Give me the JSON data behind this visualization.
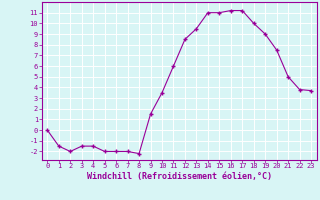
{
  "x": [
    0,
    1,
    2,
    3,
    4,
    5,
    6,
    7,
    8,
    9,
    10,
    11,
    12,
    13,
    14,
    15,
    16,
    17,
    18,
    19,
    20,
    21,
    22,
    23
  ],
  "y": [
    0.0,
    -1.5,
    -2.0,
    -1.5,
    -1.5,
    -2.0,
    -2.0,
    -2.0,
    -2.2,
    1.5,
    3.5,
    6.0,
    8.5,
    9.5,
    11.0,
    11.0,
    11.2,
    11.2,
    10.0,
    9.0,
    7.5,
    5.0,
    3.8,
    3.7
  ],
  "line_color": "#990099",
  "marker": "+",
  "marker_size": 3,
  "marker_linewidth": 1.0,
  "line_width": 0.8,
  "xlabel": "Windchill (Refroidissement éolien,°C)",
  "xlabel_fontsize": 6,
  "background_color": "#d8f5f5",
  "grid_color": "#ffffff",
  "ylim": [
    -2.8,
    12.0
  ],
  "xlim": [
    -0.5,
    23.5
  ],
  "yticks": [
    -2,
    -1,
    0,
    1,
    2,
    3,
    4,
    5,
    6,
    7,
    8,
    9,
    10,
    11
  ],
  "xticks": [
    0,
    1,
    2,
    3,
    4,
    5,
    6,
    7,
    8,
    9,
    10,
    11,
    12,
    13,
    14,
    15,
    16,
    17,
    18,
    19,
    20,
    21,
    22,
    23
  ],
  "tick_color": "#990099",
  "tick_fontsize": 5.0,
  "spine_color": "#990099",
  "axis_linewidth": 0.8
}
